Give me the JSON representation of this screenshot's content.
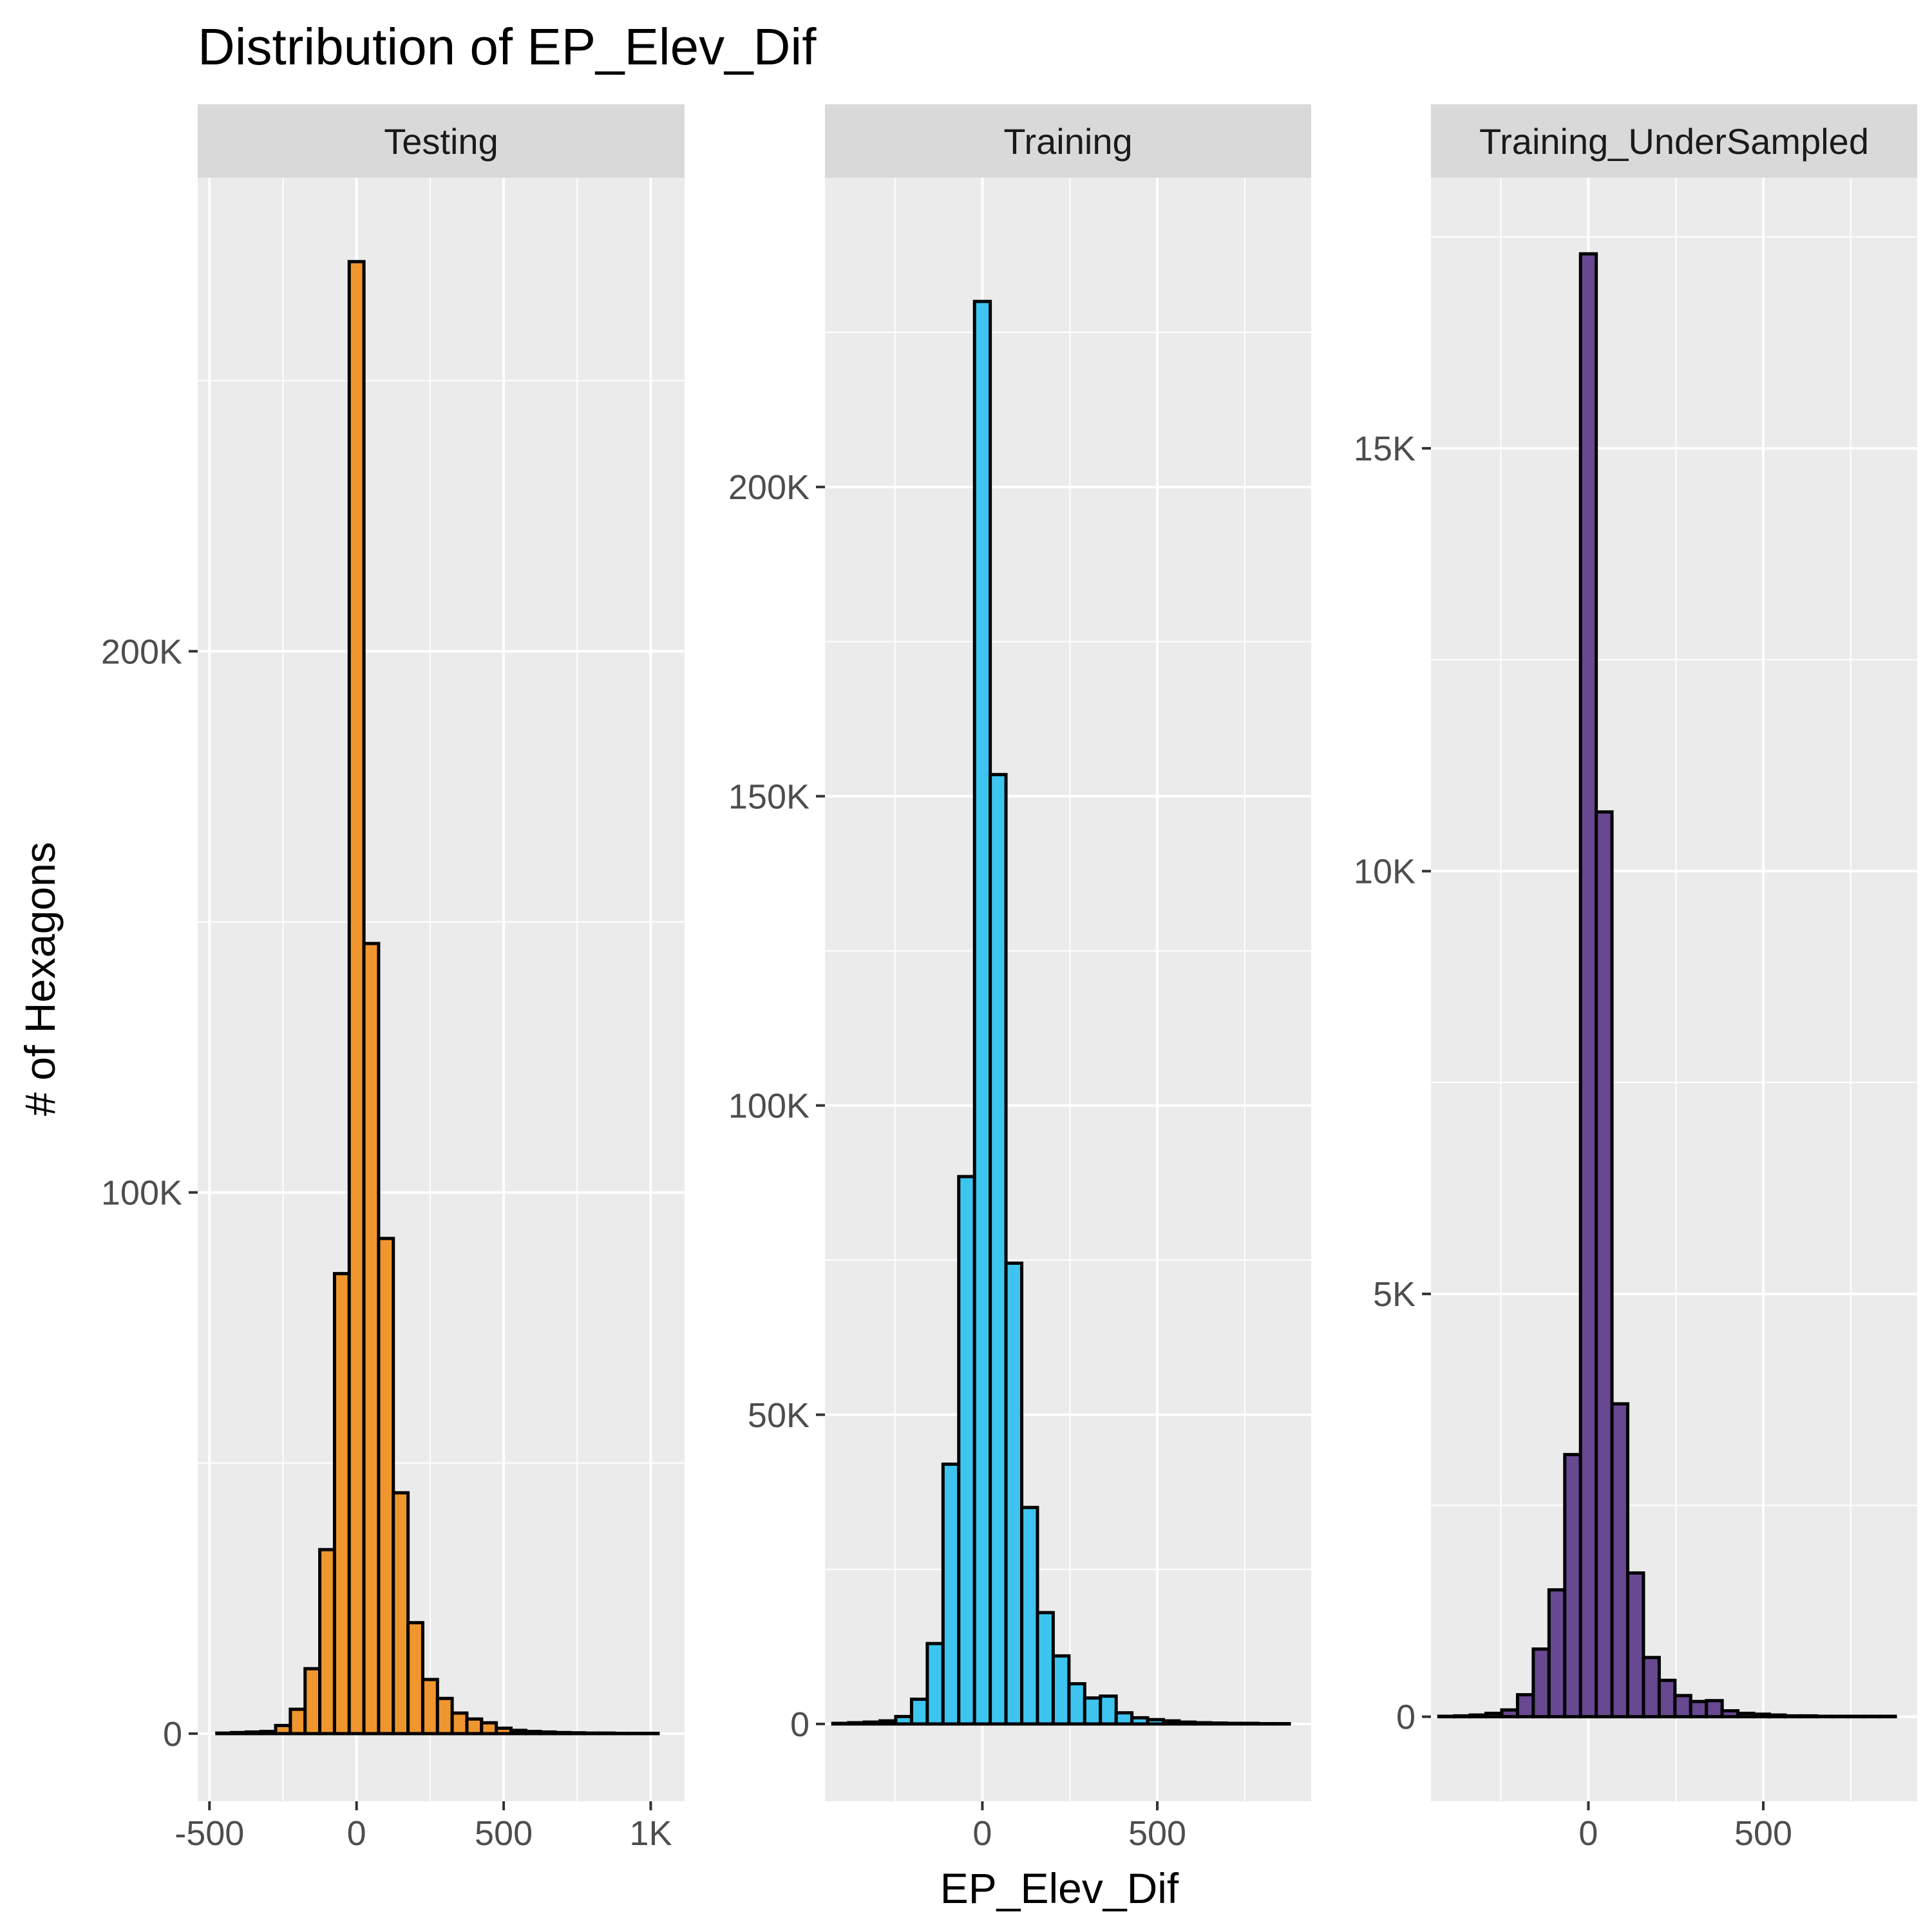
{
  "chart_data": {
    "type": "bar",
    "title": "Distribution of EP_Elev_Dif",
    "xlabel": "EP_Elev_Dif",
    "ylabel": "# of Hexagons",
    "grid": true,
    "legend": "none",
    "panels": [
      {
        "name": "Testing",
        "fill": "#F0962E",
        "xlim": [
          -540,
          1115
        ],
        "ylim": [
          -12500,
          287500
        ],
        "xticks": [
          -500,
          0,
          500,
          1000
        ],
        "xtick_labels": [
          "-500",
          "0",
          "500",
          "1K"
        ],
        "yticks": [
          0,
          100000,
          200000
        ],
        "ytick_labels": [
          "0",
          "100K",
          "200K"
        ],
        "bin_width": 50,
        "bin_centers": [
          -450,
          -400,
          -350,
          -300,
          -250,
          -200,
          -150,
          -100,
          -50,
          0,
          50,
          100,
          150,
          200,
          250,
          300,
          350,
          400,
          450,
          500,
          550,
          600,
          650,
          700,
          750,
          800,
          850,
          900,
          950,
          1000
        ],
        "counts": [
          100,
          200,
          300,
          400,
          1500,
          4500,
          12000,
          34000,
          85000,
          272000,
          146000,
          91500,
          44500,
          20500,
          10000,
          6500,
          3800,
          2700,
          2000,
          1000,
          600,
          400,
          300,
          200,
          150,
          100,
          100,
          50,
          50,
          50
        ]
      },
      {
        "name": "Training",
        "fill": "#3DC5F0",
        "xlim": [
          -450,
          940
        ],
        "ylim": [
          -12500,
          250000
        ],
        "xticks": [
          0,
          500
        ],
        "xtick_labels": [
          "0",
          "500"
        ],
        "yticks": [
          0,
          50000,
          100000,
          150000,
          200000
        ],
        "ytick_labels": [
          "0",
          "50K",
          "100K",
          "150K",
          "200K"
        ],
        "bin_width": 45,
        "bin_centers": [
          -405,
          -360,
          -315,
          -270,
          -225,
          -180,
          -135,
          -90,
          -45,
          0,
          45,
          90,
          135,
          180,
          225,
          270,
          315,
          360,
          405,
          450,
          495,
          540,
          585,
          630,
          675,
          720,
          765,
          810,
          855
        ],
        "counts": [
          100,
          200,
          300,
          500,
          1200,
          4000,
          13000,
          42000,
          88500,
          230000,
          153500,
          74500,
          35000,
          18000,
          11000,
          6500,
          4200,
          4500,
          1800,
          1000,
          700,
          500,
          300,
          200,
          150,
          100,
          100,
          50,
          50
        ]
      },
      {
        "name": "Training_UnderSampled",
        "fill": "#684891",
        "xlim": [
          -450,
          940
        ],
        "ylim": [
          -1000,
          18200
        ],
        "xticks": [
          0,
          500
        ],
        "xtick_labels": [
          "0",
          "500"
        ],
        "yticks": [
          0,
          5000,
          10000,
          15000
        ],
        "ytick_labels": [
          "0",
          "5K",
          "10K",
          "15K"
        ],
        "bin_width": 45,
        "bin_centers": [
          -405,
          -360,
          -315,
          -270,
          -225,
          -180,
          -135,
          -90,
          -45,
          0,
          45,
          90,
          135,
          180,
          225,
          270,
          315,
          360,
          405,
          450,
          495,
          540,
          585,
          630,
          675,
          720,
          765,
          810,
          855
        ],
        "counts": [
          5,
          10,
          20,
          40,
          80,
          260,
          800,
          1500,
          3100,
          17300,
          10700,
          3700,
          1700,
          700,
          430,
          250,
          180,
          190,
          70,
          40,
          30,
          20,
          10,
          10,
          5,
          5,
          5,
          5,
          5
        ]
      }
    ]
  }
}
